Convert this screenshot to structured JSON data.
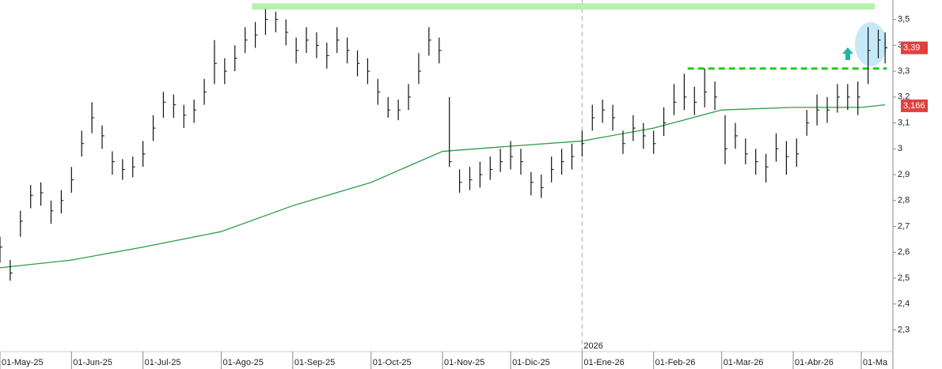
{
  "chart_data": {
    "type": "ohlc",
    "color": "#111111",
    "x": [
      0,
      3,
      6,
      9,
      12,
      15,
      18,
      21,
      24,
      27,
      30,
      33,
      36,
      39,
      42,
      45,
      48,
      51,
      54,
      57,
      60,
      63,
      66,
      69,
      72,
      75,
      78,
      81,
      84,
      87,
      90,
      93,
      96,
      99,
      102,
      105,
      108,
      111,
      114,
      117,
      120,
      123,
      126,
      129,
      132,
      135,
      138,
      141,
      144,
      147,
      150,
      153,
      156,
      159,
      162,
      165,
      168,
      171,
      174,
      177,
      180,
      183,
      186,
      189,
      192,
      195,
      198,
      201,
      204,
      207,
      210,
      213,
      216,
      219,
      222,
      225,
      228,
      231,
      234,
      237,
      240,
      243,
      246,
      249,
      252,
      255,
      258,
      260
    ],
    "high": [
      2.66,
      2.57,
      2.76,
      2.86,
      2.87,
      2.8,
      2.84,
      2.93,
      3.07,
      3.18,
      3.09,
      2.99,
      2.96,
      2.97,
      3.03,
      3.13,
      3.22,
      3.21,
      3.17,
      3.19,
      3.27,
      3.42,
      3.35,
      3.4,
      3.47,
      3.49,
      3.54,
      3.53,
      3.5,
      3.43,
      3.47,
      3.45,
      3.41,
      3.47,
      3.43,
      3.38,
      3.35,
      3.27,
      3.2,
      3.19,
      3.25,
      3.37,
      3.47,
      3.43,
      3.2,
      2.92,
      2.93,
      2.95,
      2.97,
      3.0,
      3.03,
      3.0,
      2.91,
      2.9,
      2.97,
      3.0,
      3.02,
      3.07,
      3.17,
      3.19,
      3.17,
      3.07,
      3.13,
      3.1,
      3.07,
      3.16,
      3.25,
      3.29,
      3.24,
      3.31,
      3.26,
      3.13,
      3.1,
      3.04,
      3.0,
      2.98,
      3.06,
      3.03,
      3.04,
      3.15,
      3.21,
      3.2,
      3.25,
      3.25,
      3.26,
      3.47,
      3.46,
      3.45
    ],
    "low": [
      2.56,
      2.49,
      2.66,
      2.77,
      2.78,
      2.71,
      2.75,
      2.83,
      2.97,
      3.06,
      3.0,
      2.9,
      2.88,
      2.89,
      2.93,
      3.03,
      3.12,
      3.12,
      3.08,
      3.1,
      3.17,
      3.25,
      3.25,
      3.3,
      3.37,
      3.39,
      3.44,
      3.45,
      3.4,
      3.33,
      3.37,
      3.35,
      3.31,
      3.37,
      3.33,
      3.28,
      3.25,
      3.17,
      3.12,
      3.11,
      3.15,
      3.25,
      3.36,
      3.33,
      2.93,
      2.83,
      2.84,
      2.85,
      2.88,
      2.91,
      2.92,
      2.9,
      2.82,
      2.81,
      2.87,
      2.9,
      2.92,
      2.97,
      3.07,
      3.1,
      3.07,
      2.98,
      3.03,
      3.0,
      2.98,
      3.05,
      3.13,
      3.15,
      3.13,
      3.16,
      3.15,
      2.94,
      3.0,
      2.94,
      2.9,
      2.87,
      2.95,
      2.9,
      2.93,
      3.05,
      3.09,
      3.1,
      3.14,
      3.15,
      3.13,
      3.25,
      3.35,
      3.33
    ],
    "close": [
      2.62,
      2.52,
      2.72,
      2.82,
      2.83,
      2.76,
      2.8,
      2.88,
      3.02,
      3.12,
      3.05,
      2.95,
      2.92,
      2.93,
      2.98,
      3.08,
      3.18,
      3.17,
      3.13,
      3.15,
      3.22,
      3.33,
      3.3,
      3.35,
      3.42,
      3.44,
      3.5,
      3.5,
      3.45,
      3.38,
      3.42,
      3.4,
      3.36,
      3.42,
      3.38,
      3.33,
      3.3,
      3.22,
      3.15,
      3.15,
      3.2,
      3.3,
      3.42,
      3.38,
      2.95,
      2.87,
      2.88,
      2.9,
      2.92,
      2.95,
      2.97,
      2.95,
      2.87,
      2.85,
      2.92,
      2.95,
      2.97,
      3.02,
      3.12,
      3.15,
      3.12,
      3.02,
      3.08,
      3.05,
      3.02,
      3.1,
      3.18,
      3.2,
      3.18,
      3.22,
      3.2,
      3.0,
      3.05,
      2.98,
      2.95,
      2.93,
      3.0,
      2.97,
      2.98,
      3.1,
      3.15,
      3.15,
      3.2,
      3.2,
      3.2,
      3.38,
      3.42,
      3.39
    ],
    "moving_average": {
      "color": "#2e9b4a",
      "x": [
        0,
        21,
        42,
        65,
        86,
        109,
        130,
        150,
        171,
        192,
        212,
        233,
        253,
        260
      ],
      "values": [
        2.54,
        2.57,
        2.62,
        2.68,
        2.78,
        2.87,
        2.99,
        3.01,
        3.03,
        3.08,
        3.15,
        3.16,
        3.16,
        3.17
      ]
    },
    "xlim": [
      0,
      262.3
    ],
    "ylim": [
      2.216,
      3.575
    ],
    "xticks": [
      {
        "value": 0,
        "label": "01-May-25"
      },
      {
        "value": 21,
        "label": "01-Jun-25"
      },
      {
        "value": 42,
        "label": "01-Jul-25"
      },
      {
        "value": 65,
        "label": "01-Ago-25"
      },
      {
        "value": 86,
        "label": "01-Sep-25"
      },
      {
        "value": 109,
        "label": "01-Oct-25"
      },
      {
        "value": 130,
        "label": "01-Nov-25"
      },
      {
        "value": 150,
        "label": "01-Dic-25"
      },
      {
        "value": 171,
        "label": "01-Ene-26"
      },
      {
        "value": 192,
        "label": "01-Feb-26"
      },
      {
        "value": 212,
        "label": "01-Mar-26"
      },
      {
        "value": 233,
        "label": "01-Abr-26"
      },
      {
        "value": 253,
        "label": "01-Ma"
      }
    ],
    "yticks": [
      {
        "value": 2.3,
        "label": "2,3"
      },
      {
        "value": 2.4,
        "label": "2,4"
      },
      {
        "value": 2.5,
        "label": "2,5"
      },
      {
        "value": 2.6,
        "label": "2,6"
      },
      {
        "value": 2.7,
        "label": "2,7"
      },
      {
        "value": 2.8,
        "label": "2,8"
      },
      {
        "value": 2.9,
        "label": "2,9"
      },
      {
        "value": 3.0,
        "label": "3"
      },
      {
        "value": 3.1,
        "label": "3,1"
      },
      {
        "value": 3.2,
        "label": "3,2"
      },
      {
        "value": 3.3,
        "label": "3,3"
      },
      {
        "value": 3.4,
        "label": "3,4"
      },
      {
        "value": 3.5,
        "label": "3,5"
      }
    ],
    "year_marker": {
      "value": 171,
      "label": "2026"
    },
    "price_labels": [
      {
        "value": 3.39,
        "label": "3,39"
      },
      {
        "value": 3.166,
        "label": "3,166"
      }
    ],
    "resistance": {
      "value": 3.55,
      "x": [
        74,
        257
      ],
      "color": "#b8f0b0"
    },
    "breakout": {
      "value": 3.31,
      "x": [
        202,
        260.5
      ],
      "color": "#22cc22"
    }
  }
}
